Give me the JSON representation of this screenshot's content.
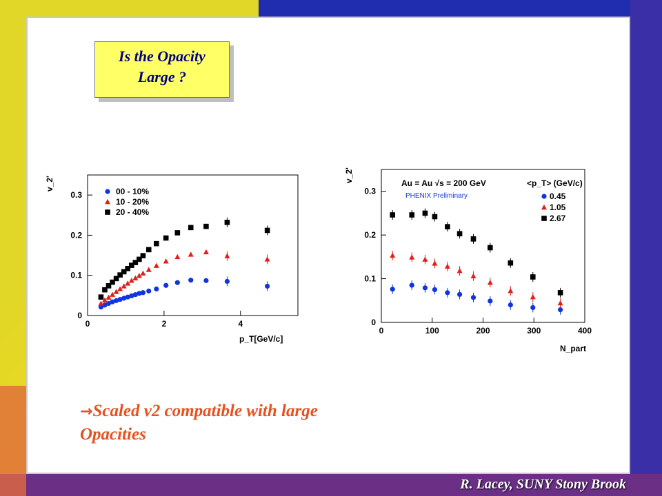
{
  "title": {
    "line1": "Is the Opacity",
    "line2": "Large ?"
  },
  "bullet": {
    "arrow": "→",
    "text": "Scaled v2 compatible with large Opacities"
  },
  "footer": "R. Lacey, SUNY Stony Brook",
  "colors": {
    "title_bg": "#ffff66",
    "title_text": "#000080",
    "bullet": "#e8501e",
    "red": "#e0201a",
    "blue": "#1034e0",
    "black": "#000000"
  },
  "chart_data": [
    {
      "type": "scatter",
      "xlabel": "p_T[GeV/c]",
      "ylabel": "v_2'",
      "xlim": [
        0,
        5.5
      ],
      "ylim": [
        0,
        0.35
      ],
      "xticks": [
        "0",
        "2",
        "4"
      ],
      "yticks": [
        "0",
        "0.1",
        "0.2",
        "0.3"
      ],
      "legend_position": "top-left",
      "grid": false,
      "series": [
        {
          "name": "00 - 10%",
          "color": "blue",
          "marker": "circle",
          "x": [
            0.35,
            0.45,
            0.55,
            0.65,
            0.75,
            0.85,
            0.95,
            1.05,
            1.15,
            1.25,
            1.35,
            1.45,
            1.6,
            1.8,
            2.05,
            2.35,
            2.7,
            3.1,
            3.65,
            4.7
          ],
          "y": [
            0.021,
            0.026,
            0.03,
            0.034,
            0.037,
            0.04,
            0.043,
            0.046,
            0.049,
            0.052,
            0.055,
            0.057,
            0.061,
            0.066,
            0.075,
            0.082,
            0.088,
            0.087,
            0.085,
            0.073
          ]
        },
        {
          "name": "10 - 20%",
          "color": "red",
          "marker": "triangle",
          "x": [
            0.35,
            0.45,
            0.55,
            0.65,
            0.75,
            0.85,
            0.95,
            1.05,
            1.15,
            1.25,
            1.35,
            1.45,
            1.6,
            1.8,
            2.05,
            2.35,
            2.7,
            3.1,
            3.65,
            4.7
          ],
          "y": [
            0.03,
            0.038,
            0.045,
            0.052,
            0.059,
            0.066,
            0.073,
            0.08,
            0.087,
            0.093,
            0.099,
            0.105,
            0.114,
            0.124,
            0.135,
            0.146,
            0.152,
            0.158,
            0.148,
            0.14
          ]
        },
        {
          "name": "20 - 40%",
          "color": "black",
          "marker": "square",
          "x": [
            0.35,
            0.45,
            0.55,
            0.65,
            0.75,
            0.85,
            0.95,
            1.05,
            1.15,
            1.25,
            1.35,
            1.45,
            1.6,
            1.8,
            2.05,
            2.35,
            2.7,
            3.1,
            3.65,
            4.7
          ],
          "y": [
            0.046,
            0.064,
            0.074,
            0.083,
            0.092,
            0.101,
            0.109,
            0.117,
            0.125,
            0.132,
            0.14,
            0.149,
            0.164,
            0.179,
            0.193,
            0.206,
            0.219,
            0.222,
            0.232,
            0.212
          ]
        }
      ]
    },
    {
      "type": "scatter",
      "xlabel": "N_part",
      "ylabel": "v_2'",
      "xlim": [
        0,
        400
      ],
      "ylim": [
        0,
        0.35
      ],
      "xticks": [
        "0",
        "100",
        "200",
        "300",
        "400"
      ],
      "yticks": [
        "0",
        "0.1",
        "0.2",
        "0.3"
      ],
      "annotations": [
        "Au = Au √s = 200 GeV",
        "PHENIX Preliminary"
      ],
      "legend_title": "<p_T> (GeV/c)",
      "legend_position": "top-right",
      "grid": false,
      "series": [
        {
          "name": "0.45",
          "color": "blue",
          "marker": "circle",
          "x": [
            22,
            60,
            86,
            105,
            130,
            154,
            181,
            214,
            254,
            298,
            352
          ],
          "y": [
            0.076,
            0.085,
            0.079,
            0.075,
            0.068,
            0.064,
            0.057,
            0.049,
            0.04,
            0.034,
            0.029
          ]
        },
        {
          "name": "1.05",
          "color": "red",
          "marker": "triangle",
          "x": [
            22,
            60,
            86,
            105,
            130,
            154,
            181,
            214,
            254,
            298,
            352
          ],
          "y": [
            0.153,
            0.149,
            0.144,
            0.135,
            0.128,
            0.118,
            0.106,
            0.091,
            0.072,
            0.058,
            0.044
          ]
        },
        {
          "name": "2.67",
          "color": "black",
          "marker": "square",
          "x": [
            22,
            60,
            86,
            105,
            130,
            154,
            181,
            214,
            254,
            298,
            352
          ],
          "y": [
            0.246,
            0.246,
            0.25,
            0.242,
            0.219,
            0.203,
            0.191,
            0.171,
            0.136,
            0.104,
            0.068
          ]
        }
      ]
    }
  ]
}
